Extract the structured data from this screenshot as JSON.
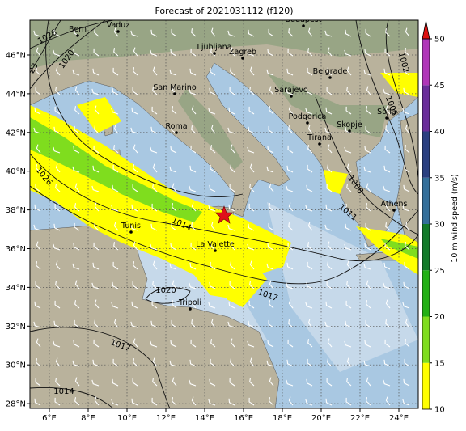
{
  "title": "Forecast of 2021031112 (f120)",
  "lon_ticks": [
    "6°E",
    "8°E",
    "10°E",
    "12°E",
    "14°E",
    "16°E",
    "18°E",
    "20°E",
    "22°E",
    "24°E"
  ],
  "lat_ticks": [
    "46°N",
    "44°N",
    "42°N",
    "40°N",
    "38°N",
    "36°N",
    "34°N",
    "32°N",
    "30°N",
    "28°N"
  ],
  "cities": [
    "Bern",
    "Vaduz",
    "Budapest",
    "Ljubljana",
    "Zagreb",
    "Belgrade",
    "San Marino",
    "Sarajevo",
    "Sofia",
    "Podgorica",
    "Skopje",
    "Roma",
    "Tirana",
    "Athens",
    "Tunis",
    "La Valette",
    "Tripoli"
  ],
  "isobar_labels": [
    "1026",
    "1020",
    "23",
    "1002",
    "1005",
    "1008",
    "1011",
    "1026",
    "1014",
    "1017",
    "1020",
    "1017",
    "1014"
  ],
  "colorbar": {
    "label": "10 m wind speed (m/s)",
    "ticks": [
      10,
      15,
      20,
      25,
      30,
      35,
      40,
      45,
      50
    ],
    "colors": [
      "#ffff00",
      "#7fdd1e",
      "#22b014",
      "#127a2a",
      "#336f9a",
      "#2a3f80",
      "#6a2d9a",
      "#b035b8"
    ],
    "extend_color": "#dd1111"
  }
}
